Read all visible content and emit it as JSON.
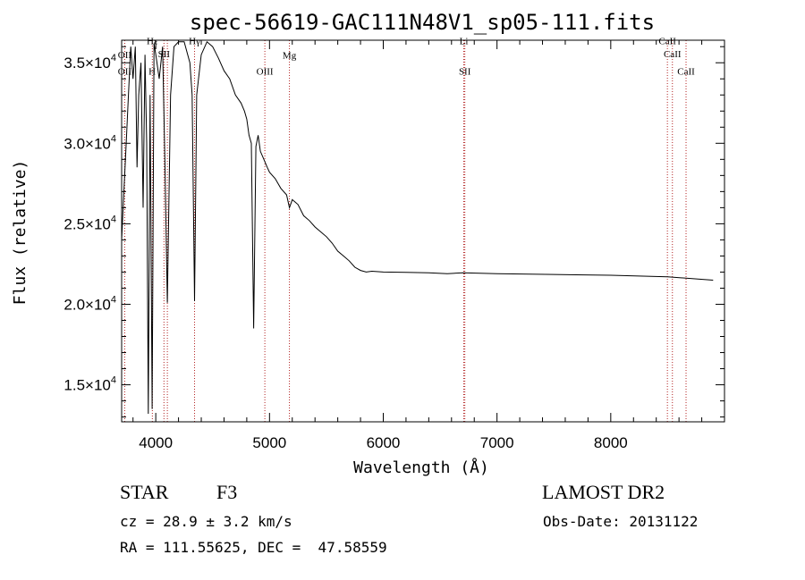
{
  "chart_data": {
    "type": "line",
    "title": "spec-56619-GAC111N48V1_sp05-111.fits",
    "xlabel": "Wavelength (Å)",
    "ylabel": "Flux (relative)",
    "xlim": [
      3700,
      9000
    ],
    "ylim": [
      12700,
      36400
    ],
    "x_ticks": [
      4000,
      5000,
      6000,
      7000,
      8000
    ],
    "x_tick_labels": [
      "4000",
      "5000",
      "6000",
      "7000",
      "8000"
    ],
    "y_ticks": [
      {
        "value": 15000,
        "mantissa": "1.5",
        "base": "×10",
        "exp": "4"
      },
      {
        "value": 20000,
        "mantissa": "2.0",
        "base": "×10",
        "exp": "4"
      },
      {
        "value": 25000,
        "mantissa": "2.5",
        "base": "×10",
        "exp": "4"
      },
      {
        "value": 30000,
        "mantissa": "3.0",
        "base": "×10",
        "exp": "4"
      },
      {
        "value": 35000,
        "mantissa": "3.5",
        "base": "×10",
        "exp": "4"
      }
    ],
    "line_color": "#000000",
    "line_marker_color": "#b22222",
    "spectral_lines": [
      {
        "label": "OII",
        "wavelength": 3727,
        "label_flux": 35300
      },
      {
        "label": "OII",
        "wavelength": 3727,
        "label_flux": 34250
      },
      {
        "label": "Hε",
        "wavelength": 3970,
        "label_flux": 36150
      },
      {
        "label": "SII",
        "wavelength": 4072,
        "label_flux": 35350
      },
      {
        "label": "H",
        "wavelength": 3968,
        "label_flux": 34250
      },
      {
        "label": "Hγ",
        "wavelength": 4341,
        "label_flux": 36150
      },
      {
        "label": "OIII",
        "wavelength": 4959,
        "label_flux": 34250
      },
      {
        "label": "Mg",
        "wavelength": 5175,
        "label_flux": 35250
      },
      {
        "label": "Li",
        "wavelength": 6708,
        "label_flux": 36150
      },
      {
        "label": "SII",
        "wavelength": 6717,
        "label_flux": 34250
      },
      {
        "label": "CaII",
        "wavelength": 8498,
        "label_flux": 36150
      },
      {
        "label": "CaII",
        "wavelength": 8542,
        "label_flux": 35350
      },
      {
        "label": "CaII",
        "wavelength": 8662,
        "label_flux": 34250
      }
    ],
    "marker_wavelengths": [
      3727,
      3970,
      4072,
      4102,
      4341,
      4959,
      5175,
      6708,
      6717,
      8498,
      8542,
      8662
    ],
    "series": [
      {
        "x": [
          3700,
          3720,
          3740,
          3760,
          3780,
          3800,
          3820,
          3835,
          3850,
          3870,
          3889,
          3905,
          3920,
          3934,
          3950,
          3968,
          3985,
          4000,
          4030,
          4060,
          4080,
          4102,
          4130,
          4160,
          4200,
          4250,
          4300,
          4320,
          4341,
          4360,
          4400,
          4450,
          4500,
          4550,
          4600,
          4650,
          4700,
          4750,
          4780,
          4800,
          4820,
          4840,
          4861,
          4880,
          4900,
          4920,
          4950,
          4980,
          5000,
          5050,
          5100,
          5150,
          5175,
          5200,
          5250,
          5300,
          5350,
          5400,
          5450,
          5500,
          5550,
          5600,
          5650,
          5700,
          5750,
          5800,
          5850,
          5900,
          6000,
          6200,
          6400,
          6563,
          6700,
          7000,
          7500,
          8000,
          8500,
          8900
        ],
        "y": [
          24000,
          27000,
          30000,
          33000,
          36000,
          34000,
          36000,
          28500,
          33000,
          35000,
          26000,
          35500,
          30000,
          13200,
          33000,
          13500,
          36200,
          35500,
          34000,
          36000,
          29000,
          20100,
          33000,
          36000,
          36300,
          36300,
          35000,
          33000,
          20200,
          33000,
          35500,
          36300,
          36000,
          35300,
          34500,
          34000,
          33000,
          32500,
          32000,
          31500,
          30500,
          30000,
          18500,
          29800,
          30500,
          29500,
          29000,
          28500,
          28200,
          27800,
          27200,
          26800,
          26000,
          26500,
          26200,
          25500,
          25200,
          24800,
          24500,
          24200,
          23800,
          23300,
          23000,
          22700,
          22300,
          22100,
          22000,
          22050,
          22000,
          21980,
          21950,
          21900,
          21950,
          21900,
          21850,
          21800,
          21700,
          21500
        ]
      }
    ]
  },
  "info": {
    "object_class": "STAR",
    "subclass": "F3",
    "survey": "LAMOST DR2",
    "cz": "cz = 28.9 ± 3.2 km/s",
    "obs_date": "Obs-Date: 20131122",
    "coords": "RA = 111.55625, DEC =  47.58559"
  }
}
